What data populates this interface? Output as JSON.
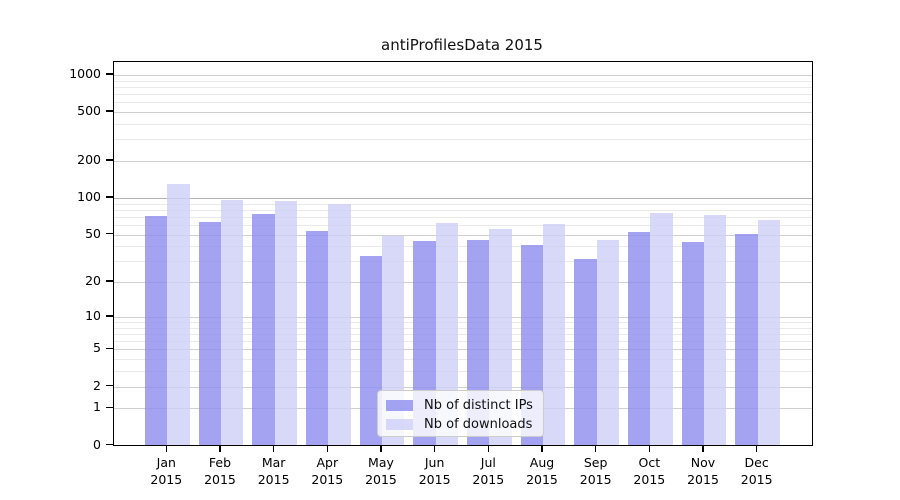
{
  "title": "antiProfilesData 2015",
  "legend": {
    "items": [
      {
        "label": "Nb of distinct IPs",
        "color_key": "ips"
      },
      {
        "label": "Nb of downloads",
        "color_key": "downloads"
      }
    ]
  },
  "colors": {
    "ips": "#8c8cee",
    "downloads": "#cecef7",
    "grid_major": "#d0d0d0",
    "grid_emphasis": "#b3b3b3",
    "grid_minor": "#eaeaea",
    "axis": "#000000"
  },
  "chart_data": {
    "type": "bar",
    "title": "antiProfilesData 2015",
    "xlabel": "",
    "ylabel": "",
    "year": "2015",
    "categories": [
      "Jan",
      "Feb",
      "Mar",
      "Apr",
      "May",
      "Jun",
      "Jul",
      "Aug",
      "Sep",
      "Oct",
      "Nov",
      "Dec"
    ],
    "series": [
      {
        "name": "Nb of distinct IPs",
        "values": [
          70,
          63,
          73,
          53,
          33,
          44,
          45,
          41,
          31,
          52,
          43,
          50
        ]
      },
      {
        "name": "Nb of downloads",
        "values": [
          128,
          96,
          94,
          88,
          48,
          62,
          55,
          61,
          45,
          75,
          72,
          65
        ]
      }
    ],
    "y_scale": "symlog-log1p",
    "ylim": [
      0,
      1270
    ],
    "yticks_major": [
      0,
      1,
      2,
      5,
      10,
      20,
      50,
      100,
      200,
      500,
      1000
    ],
    "yticks_minor": [
      3,
      4,
      6,
      7,
      8,
      9,
      30,
      40,
      60,
      70,
      80,
      90,
      300,
      400,
      600,
      700,
      800,
      900
    ],
    "grid": "on",
    "legend_position": "lower center"
  }
}
